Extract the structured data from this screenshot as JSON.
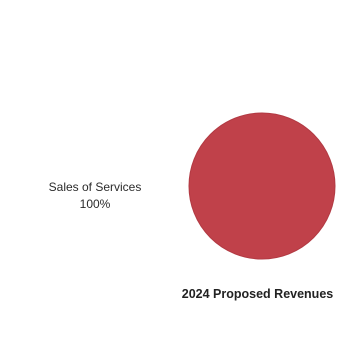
{
  "chart_data": {
    "type": "pie",
    "title": "2024 Proposed Revenues",
    "slices": [
      {
        "label": "Sales of Services",
        "value": 100,
        "value_label": "100%",
        "color": "#c0414a"
      }
    ],
    "slice_border_color": "#b23a43",
    "legend": "none"
  }
}
